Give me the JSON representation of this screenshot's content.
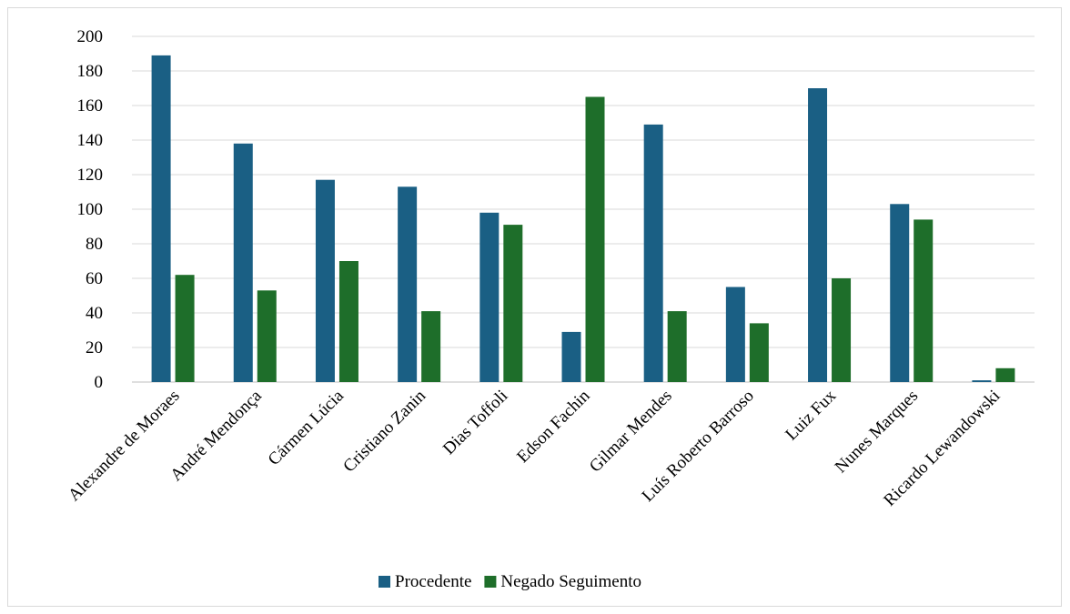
{
  "chart_data": {
    "type": "bar",
    "title": "",
    "xlabel": "",
    "ylabel": "",
    "ylim": [
      0,
      200
    ],
    "yticks": [
      0,
      20,
      40,
      60,
      80,
      100,
      120,
      140,
      160,
      180,
      200
    ],
    "grid": true,
    "legend_position": "bottom",
    "categories": [
      "Alexandre de Moraes",
      "André Mendonça",
      "Cármen Lúcia",
      "Cristiano Zanin",
      "Dias Toffoli",
      "Edson Fachin",
      "Gilmar Mendes",
      "Luís Roberto Barroso",
      "Luiz Fux",
      "Nunes Marques",
      "Ricardo Lewandowski"
    ],
    "series": [
      {
        "name": "Procedente",
        "color": "#1a5f84",
        "values": [
          189,
          138,
          117,
          113,
          98,
          29,
          149,
          55,
          170,
          103,
          1
        ]
      },
      {
        "name": "Negado Seguimento",
        "color": "#1e6e2a",
        "values": [
          62,
          53,
          70,
          41,
          91,
          165,
          41,
          34,
          60,
          94,
          8
        ]
      }
    ]
  }
}
